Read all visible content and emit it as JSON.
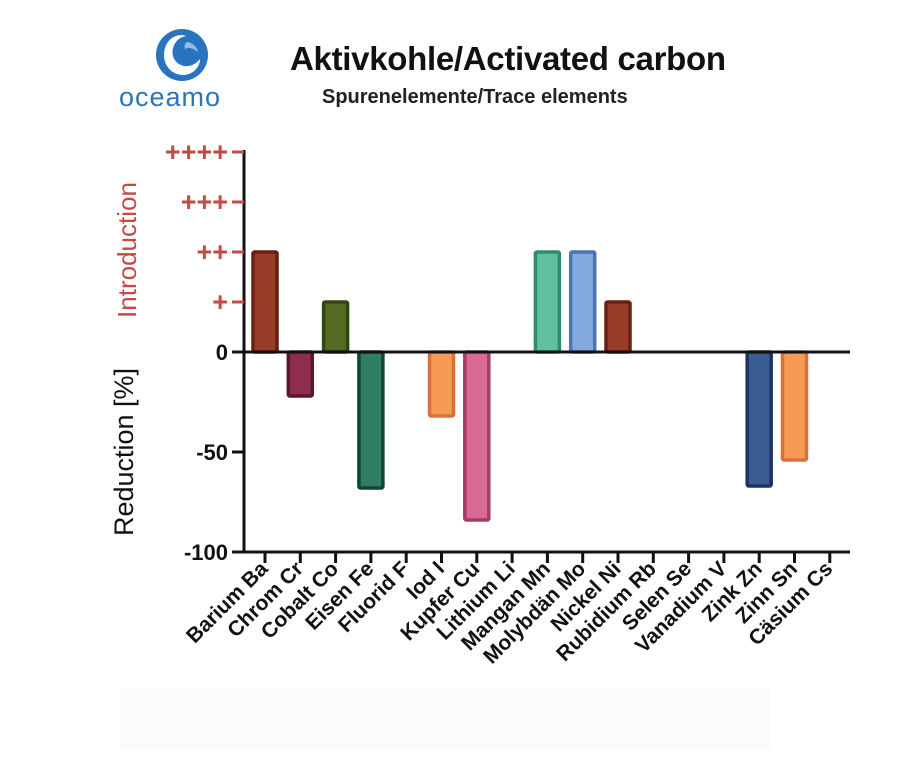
{
  "header": {
    "logo_text": "oceamo",
    "title": "Aktivkohle/Activated carbon",
    "subtitle": "Spurenelemente/Trace elements"
  },
  "colors": {
    "logo_blue": "#2a74bf",
    "intro_red": "#c44a46",
    "axis": "#111111"
  },
  "chart_data": {
    "type": "bar",
    "ylabel_top": "Introduction",
    "ylabel_bottom": "Reduction [%]",
    "intro_ticks": [
      "+",
      "++",
      "+++",
      "++++"
    ],
    "reduction_ticks": [
      "0",
      "-50",
      "-100"
    ],
    "ylim_reduction": [
      -100,
      0
    ],
    "ylim_introduction": [
      0,
      4
    ],
    "categories": [
      "Barium Ba",
      "Chrom Cr",
      "Cobalt Co",
      "Eisen Fe",
      "Fluorid F",
      "Iod I",
      "Kupfer Cu",
      "Lithium Li",
      "Mangan Mn",
      "Molybdän Mo",
      "Nickel Ni",
      "Rubidium Rb",
      "Selen Se",
      "Vanadium V",
      "Zink Zn",
      "Zinn Sn",
      "Cäsium Cs"
    ],
    "values": [
      2,
      -22,
      1,
      -68,
      0,
      -32,
      -84,
      0,
      2,
      2,
      1,
      0,
      0,
      0,
      -67,
      -54,
      0
    ],
    "value_kind": [
      "intro",
      "reduction",
      "intro",
      "reduction",
      "none",
      "reduction",
      "reduction",
      "none",
      "intro",
      "intro",
      "intro",
      "none",
      "none",
      "none",
      "reduction",
      "reduction",
      "none"
    ],
    "fill_colors": [
      "#9a3d28",
      "#8e2d4e",
      "#556b22",
      "#2f7d62",
      "",
      "#f79a55",
      "#d86b96",
      "",
      "#61c09f",
      "#84a9de",
      "#9a3d28",
      "",
      "",
      "",
      "#3b5c92",
      "#f79a55",
      ""
    ],
    "stroke_colors": [
      "#6a1f0f",
      "#5e1430",
      "#334510",
      "#124536",
      "",
      "#d9713a",
      "#a53b66",
      "",
      "#2f8b6b",
      "#4e73b4",
      "#6a1f0f",
      "",
      "",
      "",
      "#1d3463",
      "#d9713a",
      ""
    ],
    "grid": false,
    "legend": "none"
  }
}
